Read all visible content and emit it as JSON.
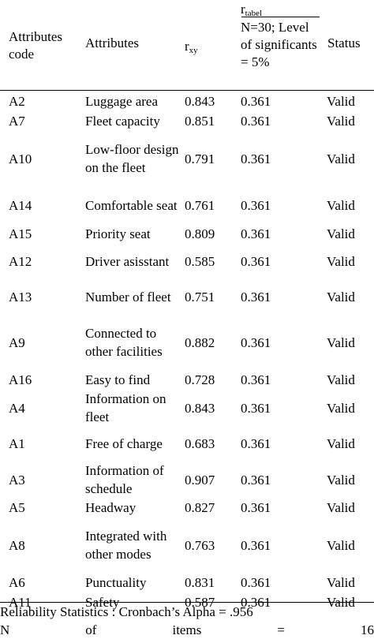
{
  "header": {
    "code": "Attributes code",
    "attribute": "Attributes",
    "rxy_main": "r",
    "rxy_sub": "xy",
    "rtabel_main": "r",
    "rtabel_sub": "tabel",
    "rtabel_detail": "N=30; Level of significants = 5%",
    "status": "Status"
  },
  "rows": [
    {
      "code": "A2",
      "attribute": "Luggage area",
      "rxy": "0.843",
      "rtabel": "0.361",
      "status": "Valid"
    },
    {
      "code": "A7",
      "attribute": "Fleet capacity",
      "rxy": "0.851",
      "rtabel": "0.361",
      "status": "Valid"
    },
    {
      "code": "A10",
      "attribute": "Low-floor design on the fleet",
      "rxy": "0.791",
      "rtabel": "0.361",
      "status": "Valid"
    },
    {
      "code": "A14",
      "attribute": "Comfortable seat",
      "rxy": "0.761",
      "rtabel": "0.361",
      "status": "Valid"
    },
    {
      "code": "A15",
      "attribute": "Priority seat",
      "rxy": "0.809",
      "rtabel": "0.361",
      "status": "Valid"
    },
    {
      "code": "A12",
      "attribute": "Driver asisstant",
      "rxy": "0.585",
      "rtabel": "0.361",
      "status": "Valid"
    },
    {
      "code": "A13",
      "attribute": "Number of fleet",
      "rxy": "0.751",
      "rtabel": "0.361",
      "status": "Valid"
    },
    {
      "code": "A9",
      "attribute": "Connected to other facilities",
      "rxy": "0.882",
      "rtabel": "0.361",
      "status": "Valid"
    },
    {
      "code": "A16",
      "attribute": "Easy to find",
      "rxy": "0.728",
      "rtabel": "0.361",
      "status": "Valid"
    },
    {
      "code": "A4",
      "attribute": "Information on fleet",
      "rxy": "0.843",
      "rtabel": "0.361",
      "status": "Valid"
    },
    {
      "code": "A1",
      "attribute": "Free of charge",
      "rxy": "0.683",
      "rtabel": "0.361",
      "status": "Valid"
    },
    {
      "code": "A3",
      "attribute": "Information of schedule",
      "rxy": "0.907",
      "rtabel": "0.361",
      "status": "Valid"
    },
    {
      "code": "A5",
      "attribute": "Headway",
      "rxy": "0.827",
      "rtabel": "0.361",
      "status": "Valid"
    },
    {
      "code": "A8",
      "attribute": "Integrated with other modes",
      "rxy": "0.763",
      "rtabel": "0.361",
      "status": "Valid"
    },
    {
      "code": "A6",
      "attribute": "Punctuality",
      "rxy": "0.831",
      "rtabel": "0.361",
      "status": "Valid"
    },
    {
      "code": "A11",
      "attribute": "Safety",
      "rxy": "0.587",
      "rtabel": "0.361",
      "status": "Valid"
    }
  ],
  "footer": {
    "reliability": "Reliability Statistics : Cronbach’s Alpha = .956",
    "n_items": [
      "N",
      "of",
      "items",
      "=",
      "16"
    ]
  }
}
